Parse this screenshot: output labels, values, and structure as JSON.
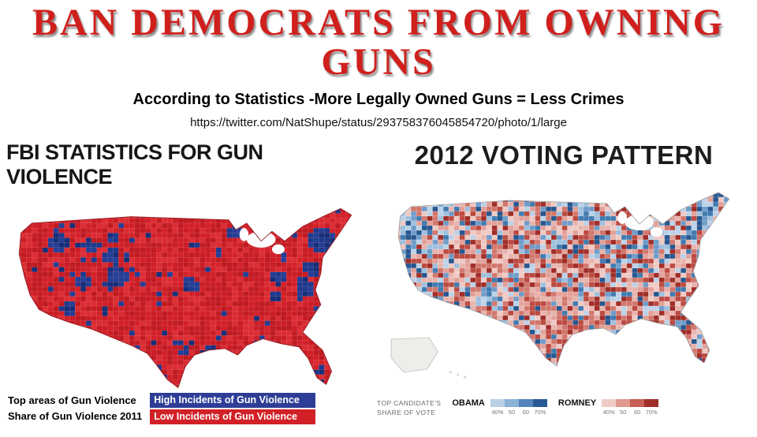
{
  "header": {
    "title": "BAN DEMOCRATS FROM OWNING GUNS",
    "subtitle": "According to Statistics -More Legally Owned Guns = Less Crimes",
    "url": "https://twitter.com/NatShupe/status/293758376045854720/photo/1/large"
  },
  "left_panel": {
    "heading": "FBI STATISTICS FOR GUN VIOLENCE",
    "legend": {
      "line1": "Top areas of Gun Violence",
      "line2": "Share of Gun Violence 2011",
      "high_label": "High Incidents of Gun Violence",
      "low_label": "Low Incidents of Gun Violence",
      "high_color": "#2e3d96",
      "low_color": "#d22027"
    }
  },
  "right_panel": {
    "heading": "2012 VOTING PATTERN",
    "legend": {
      "title_line1": "TOP CANDIDATE'S",
      "title_line2": "SHARE OF VOTE",
      "obama_label": "OBAMA",
      "romney_label": "ROMNEY",
      "ticks": [
        "40%",
        "50",
        "60",
        "70%"
      ],
      "obama_colors": [
        "#b9cfe6",
        "#8ab0d6",
        "#5484bb",
        "#2a5a96"
      ],
      "romney_colors": [
        "#f0cbc6",
        "#e0988f",
        "#c75f55",
        "#9e2d27"
      ]
    }
  },
  "colors": {
    "title_red": "#d0201d",
    "gun_reds": [
      "#d42129",
      "#ca1d25",
      "#dd2d34",
      "#c01b22"
    ],
    "gun_blues": [
      "#1c3a8e",
      "#243f97",
      "#152f7a"
    ],
    "vote_reds": [
      "#efc9c4",
      "#e2a199",
      "#d2776d",
      "#bc4a41",
      "#a02e28",
      "#e8b4ad"
    ],
    "vote_blues": [
      "#9fc0de",
      "#6f9cc9",
      "#417bb0",
      "#27578f",
      "#bcd2e8"
    ]
  }
}
